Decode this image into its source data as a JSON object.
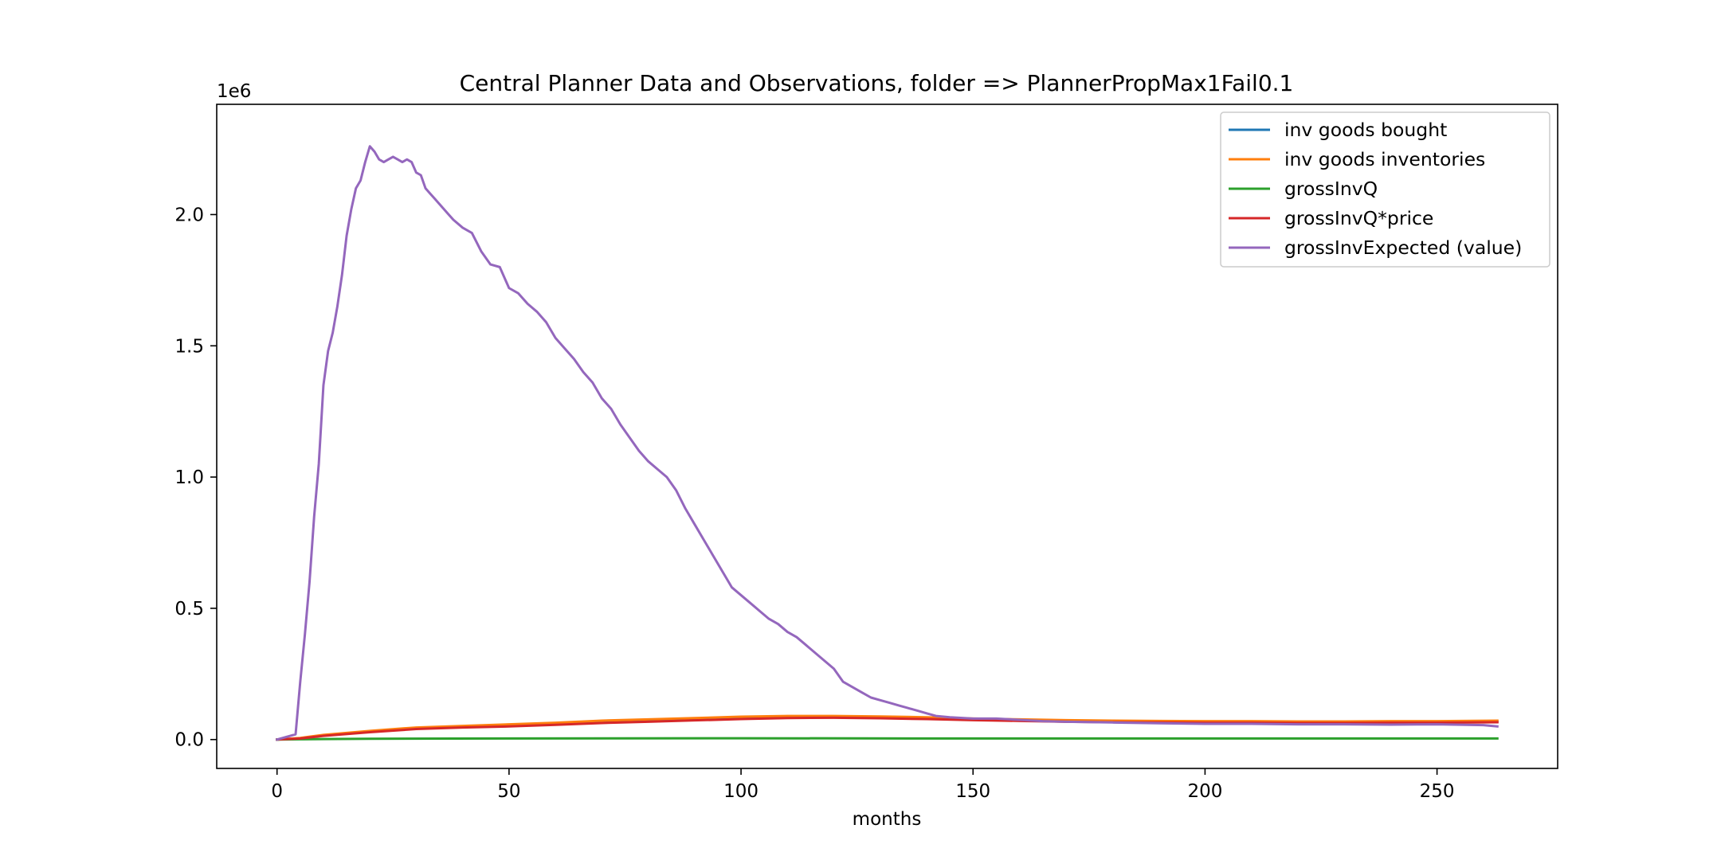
{
  "chart_data": {
    "type": "line",
    "title": "Central Planner Data and Observations, folder => PlannerPropMax1Fail0.1",
    "xlabel": "months",
    "ylabel": "",
    "offset_text": "1e6",
    "xlim": [
      -13,
      276
    ],
    "ylim": [
      -0.11,
      2.42
    ],
    "x_ticks": [
      0,
      50,
      100,
      150,
      200,
      250
    ],
    "x_tick_labels": [
      "0",
      "50",
      "100",
      "150",
      "200",
      "250"
    ],
    "y_ticks": [
      0.0,
      0.5,
      1.0,
      1.5,
      2.0
    ],
    "y_tick_labels": [
      "0.0",
      "0.5",
      "1.0",
      "1.5",
      "2.0"
    ],
    "grid": false,
    "legend_position": "top-right",
    "colors": {
      "inv goods bought": "#1f77b4",
      "inv goods inventories": "#ff7f0e",
      "grossInvQ": "#2ca02c",
      "grossInvQ*price": "#d62728",
      "grossInvExpected (value)": "#9467bd"
    },
    "series": [
      {
        "name": "inv goods bought",
        "x": [
          0,
          5,
          10,
          20,
          30,
          40,
          50,
          60,
          70,
          80,
          90,
          100,
          110,
          120,
          130,
          140,
          150,
          160,
          170,
          180,
          190,
          200,
          210,
          220,
          230,
          240,
          250,
          263
        ],
        "values": [
          0.0,
          0.005,
          0.015,
          0.03,
          0.042,
          0.048,
          0.052,
          0.058,
          0.065,
          0.07,
          0.075,
          0.08,
          0.085,
          0.085,
          0.083,
          0.08,
          0.076,
          0.073,
          0.07,
          0.068,
          0.067,
          0.066,
          0.066,
          0.065,
          0.065,
          0.066,
          0.066,
          0.068
        ]
      },
      {
        "name": "inv goods inventories",
        "x": [
          0,
          5,
          10,
          20,
          30,
          40,
          50,
          60,
          70,
          80,
          90,
          100,
          110,
          120,
          130,
          140,
          150,
          160,
          170,
          180,
          190,
          200,
          210,
          220,
          230,
          240,
          250,
          263
        ],
        "values": [
          0.0,
          0.006,
          0.018,
          0.033,
          0.046,
          0.052,
          0.058,
          0.064,
          0.072,
          0.077,
          0.082,
          0.087,
          0.09,
          0.09,
          0.088,
          0.085,
          0.08,
          0.077,
          0.074,
          0.072,
          0.071,
          0.07,
          0.07,
          0.069,
          0.069,
          0.07,
          0.07,
          0.072
        ]
      },
      {
        "name": "grossInvQ",
        "x": [
          0,
          5,
          10,
          20,
          50,
          100,
          150,
          200,
          250,
          263
        ],
        "values": [
          0.0,
          0.001,
          0.002,
          0.003,
          0.004,
          0.005,
          0.004,
          0.004,
          0.004,
          0.004
        ]
      },
      {
        "name": "grossInvQ*price",
        "x": [
          0,
          5,
          10,
          20,
          30,
          40,
          50,
          60,
          70,
          80,
          90,
          100,
          110,
          120,
          130,
          140,
          150,
          160,
          170,
          180,
          190,
          200,
          210,
          220,
          230,
          240,
          250,
          263
        ],
        "values": [
          0.0,
          0.004,
          0.014,
          0.028,
          0.04,
          0.046,
          0.05,
          0.056,
          0.063,
          0.068,
          0.073,
          0.078,
          0.082,
          0.083,
          0.081,
          0.078,
          0.074,
          0.071,
          0.068,
          0.066,
          0.065,
          0.064,
          0.064,
          0.063,
          0.063,
          0.064,
          0.064,
          0.066
        ]
      },
      {
        "name": "grossInvExpected (value)",
        "x": [
          0,
          4,
          5,
          6,
          7,
          8,
          9,
          10,
          11,
          12,
          13,
          14,
          15,
          16,
          17,
          18,
          19,
          20,
          21,
          22,
          23,
          24,
          25,
          26,
          27,
          28,
          29,
          30,
          31,
          32,
          33,
          34,
          35,
          36,
          37,
          38,
          40,
          42,
          44,
          46,
          48,
          50,
          52,
          54,
          56,
          58,
          60,
          62,
          64,
          66,
          68,
          70,
          72,
          74,
          76,
          78,
          80,
          82,
          84,
          86,
          88,
          90,
          92,
          94,
          96,
          98,
          100,
          102,
          104,
          106,
          108,
          110,
          112,
          114,
          116,
          118,
          120,
          122,
          124,
          126,
          128,
          130,
          132,
          134,
          136,
          138,
          140,
          142,
          145,
          150,
          155,
          160,
          165,
          170,
          180,
          190,
          200,
          210,
          220,
          230,
          240,
          250,
          260,
          263
        ],
        "values": [
          0.0,
          0.02,
          0.22,
          0.4,
          0.6,
          0.85,
          1.05,
          1.35,
          1.48,
          1.55,
          1.65,
          1.77,
          1.92,
          2.02,
          2.1,
          2.13,
          2.2,
          2.26,
          2.24,
          2.21,
          2.2,
          2.21,
          2.22,
          2.21,
          2.2,
          2.21,
          2.2,
          2.16,
          2.15,
          2.1,
          2.08,
          2.06,
          2.04,
          2.02,
          2.0,
          1.98,
          1.95,
          1.93,
          1.86,
          1.81,
          1.8,
          1.72,
          1.7,
          1.66,
          1.63,
          1.59,
          1.53,
          1.49,
          1.45,
          1.4,
          1.36,
          1.3,
          1.26,
          1.2,
          1.15,
          1.1,
          1.06,
          1.03,
          1.0,
          0.95,
          0.88,
          0.82,
          0.76,
          0.7,
          0.64,
          0.58,
          0.55,
          0.52,
          0.49,
          0.46,
          0.44,
          0.41,
          0.39,
          0.36,
          0.33,
          0.3,
          0.27,
          0.22,
          0.2,
          0.18,
          0.16,
          0.15,
          0.14,
          0.13,
          0.12,
          0.11,
          0.1,
          0.09,
          0.085,
          0.08,
          0.08,
          0.075,
          0.07,
          0.068,
          0.065,
          0.062,
          0.06,
          0.06,
          0.058,
          0.058,
          0.057,
          0.058,
          0.055,
          0.05
        ]
      }
    ]
  }
}
